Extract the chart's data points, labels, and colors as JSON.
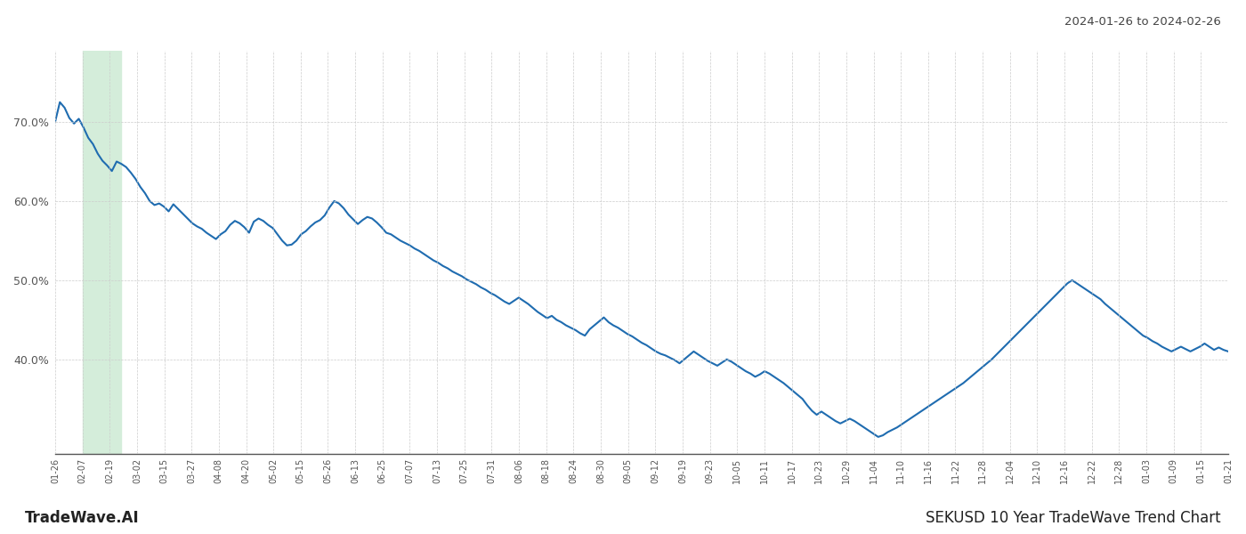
{
  "title_right": "2024-01-26 to 2024-02-26",
  "footer_left": "TradeWave.AI",
  "footer_right": "SEKUSD 10 Year TradeWave Trend Chart",
  "background_color": "#ffffff",
  "line_color": "#1f6cb0",
  "line_width": 1.5,
  "highlight_color": "#d4edda",
  "highlight_x_start_label": "02-07",
  "highlight_x_end_label": "02-25",
  "ylim": [
    0.28,
    0.79
  ],
  "ytick_positions": [
    0.4,
    0.5,
    0.6,
    0.7
  ],
  "x_labels": [
    "01-26",
    "02-07",
    "02-19",
    "03-02",
    "03-15",
    "03-27",
    "04-08",
    "04-20",
    "05-02",
    "05-15",
    "05-26",
    "06-13",
    "06-25",
    "07-07",
    "07-13",
    "07-25",
    "07-31",
    "08-06",
    "08-18",
    "08-24",
    "08-30",
    "09-05",
    "09-12",
    "09-19",
    "09-23",
    "10-05",
    "10-11",
    "10-17",
    "10-23",
    "10-29",
    "11-04",
    "11-10",
    "11-16",
    "11-22",
    "11-28",
    "12-04",
    "12-10",
    "12-16",
    "12-22",
    "12-28",
    "01-03",
    "01-09",
    "01-15",
    "01-21"
  ],
  "values": [
    0.7,
    0.725,
    0.718,
    0.705,
    0.698,
    0.704,
    0.693,
    0.68,
    0.672,
    0.66,
    0.651,
    0.645,
    0.638,
    0.65,
    0.647,
    0.643,
    0.636,
    0.628,
    0.618,
    0.61,
    0.6,
    0.595,
    0.597,
    0.593,
    0.587,
    0.596,
    0.59,
    0.584,
    0.578,
    0.572,
    0.568,
    0.565,
    0.56,
    0.556,
    0.552,
    0.558,
    0.562,
    0.57,
    0.575,
    0.572,
    0.567,
    0.56,
    0.574,
    0.578,
    0.575,
    0.57,
    0.566,
    0.558,
    0.55,
    0.544,
    0.545,
    0.55,
    0.558,
    0.562,
    0.568,
    0.573,
    0.576,
    0.582,
    0.592,
    0.6,
    0.597,
    0.591,
    0.583,
    0.577,
    0.571,
    0.576,
    0.58,
    0.578,
    0.573,
    0.567,
    0.56,
    0.558,
    0.554,
    0.55,
    0.547,
    0.544,
    0.54,
    0.537,
    0.533,
    0.529,
    0.525,
    0.522,
    0.518,
    0.515,
    0.511,
    0.508,
    0.505,
    0.501,
    0.498,
    0.495,
    0.491,
    0.488,
    0.484,
    0.481,
    0.477,
    0.473,
    0.47,
    0.474,
    0.478,
    0.474,
    0.47,
    0.465,
    0.46,
    0.456,
    0.452,
    0.455,
    0.45,
    0.447,
    0.443,
    0.44,
    0.437,
    0.433,
    0.43,
    0.438,
    0.443,
    0.448,
    0.453,
    0.447,
    0.443,
    0.44,
    0.436,
    0.432,
    0.429,
    0.425,
    0.421,
    0.418,
    0.414,
    0.41,
    0.407,
    0.405,
    0.402,
    0.399,
    0.395,
    0.4,
    0.405,
    0.41,
    0.406,
    0.402,
    0.398,
    0.395,
    0.392,
    0.396,
    0.4,
    0.397,
    0.393,
    0.389,
    0.385,
    0.382,
    0.378,
    0.381,
    0.385,
    0.382,
    0.378,
    0.374,
    0.37,
    0.365,
    0.36,
    0.355,
    0.35,
    0.342,
    0.335,
    0.33,
    0.334,
    0.33,
    0.326,
    0.322,
    0.319,
    0.322,
    0.325,
    0.322,
    0.318,
    0.314,
    0.31,
    0.306,
    0.302,
    0.304,
    0.308,
    0.311,
    0.314,
    0.318,
    0.322,
    0.326,
    0.33,
    0.334,
    0.338,
    0.342,
    0.346,
    0.35,
    0.354,
    0.358,
    0.362,
    0.366,
    0.37,
    0.375,
    0.38,
    0.385,
    0.39,
    0.395,
    0.4,
    0.406,
    0.412,
    0.418,
    0.424,
    0.43,
    0.436,
    0.442,
    0.448,
    0.454,
    0.46,
    0.466,
    0.472,
    0.478,
    0.484,
    0.49,
    0.496,
    0.5,
    0.496,
    0.492,
    0.488,
    0.484,
    0.48,
    0.476,
    0.47,
    0.465,
    0.46,
    0.455,
    0.45,
    0.445,
    0.44,
    0.435,
    0.43,
    0.427,
    0.423,
    0.42,
    0.416,
    0.413,
    0.41,
    0.413,
    0.416,
    0.413,
    0.41,
    0.413,
    0.416,
    0.42,
    0.416,
    0.412,
    0.415,
    0.412,
    0.41
  ]
}
